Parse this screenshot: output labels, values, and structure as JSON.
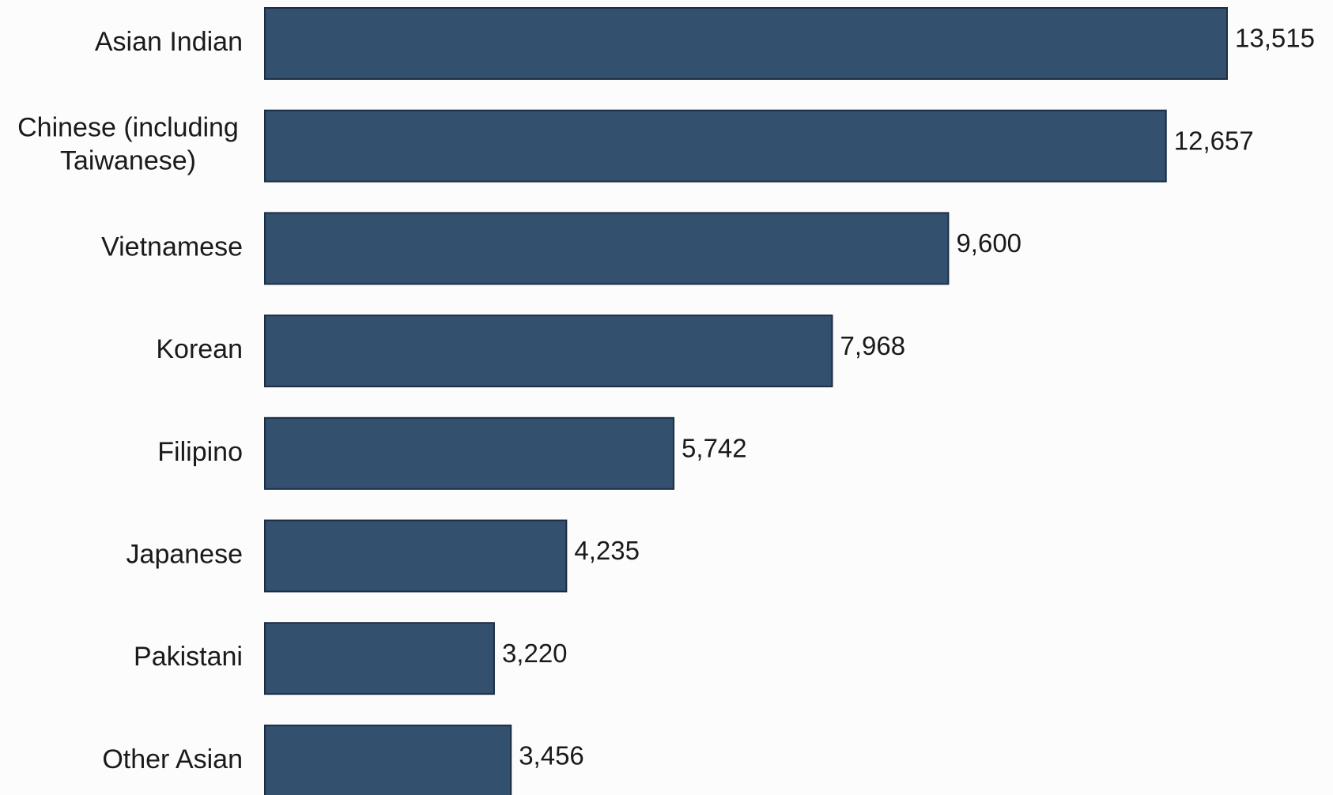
{
  "chart_data": {
    "type": "bar",
    "orientation": "horizontal",
    "title": "",
    "xlabel": "",
    "ylabel": "",
    "categories": [
      [
        "Asian Indian"
      ],
      [
        "Chinese (including",
        "Taiwanese)"
      ],
      [
        "Vietnamese"
      ],
      [
        "Korean"
      ],
      [
        "Filipino"
      ],
      [
        "Japanese"
      ],
      [
        "Pakistani"
      ],
      [
        "Other Asian"
      ]
    ],
    "values": [
      13515,
      12657,
      9600,
      7968,
      5742,
      4235,
      3220,
      3456
    ],
    "value_labels": [
      "13,515",
      "12,657",
      "9,600",
      "7,968",
      "5,742",
      "4,235",
      "3,220",
      "3,456"
    ],
    "xlim": [
      0,
      13515
    ],
    "grid": false,
    "legend": "none",
    "bar_color": "#33506f",
    "bar_edge_color": "#1c2e44"
  }
}
